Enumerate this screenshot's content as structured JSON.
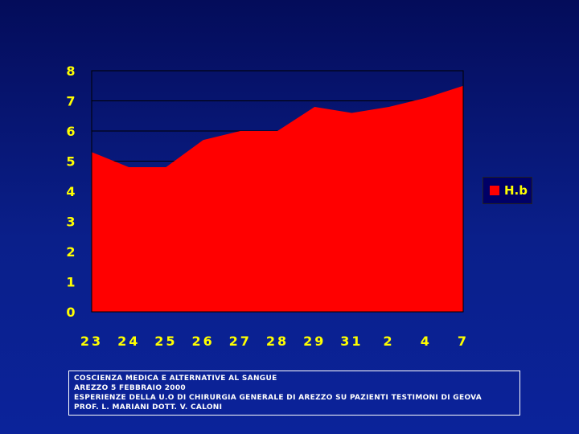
{
  "chart_data": {
    "type": "area",
    "categories": [
      "23",
      "24",
      "25",
      "26",
      "27",
      "28",
      "29",
      "31",
      "2",
      "4",
      "7"
    ],
    "series": [
      {
        "name": "H.b",
        "values": [
          5.3,
          4.8,
          4.8,
          5.7,
          6.0,
          6.0,
          6.8,
          6.6,
          6.8,
          7.1,
          7.5
        ]
      }
    ],
    "y_ticks": [
      "0",
      "1",
      "2",
      "3",
      "4",
      "5",
      "6",
      "7",
      "8"
    ],
    "ylim": [
      0,
      8
    ],
    "grid": true,
    "legend": "right",
    "colors": {
      "series": "#ff0000",
      "tick_labels": "#ffff00",
      "plot_border": "#000000"
    }
  },
  "footer": {
    "lines": [
      "Coscienza medica e alternative al sangue",
      "Arezzo 5 febbraio 2000",
      "Esperienze della U.O di chirurgia generale di Arezzo su pazienti testimoni di Geova",
      "Prof. L. Mariani  Dott. V. Caloni"
    ]
  }
}
